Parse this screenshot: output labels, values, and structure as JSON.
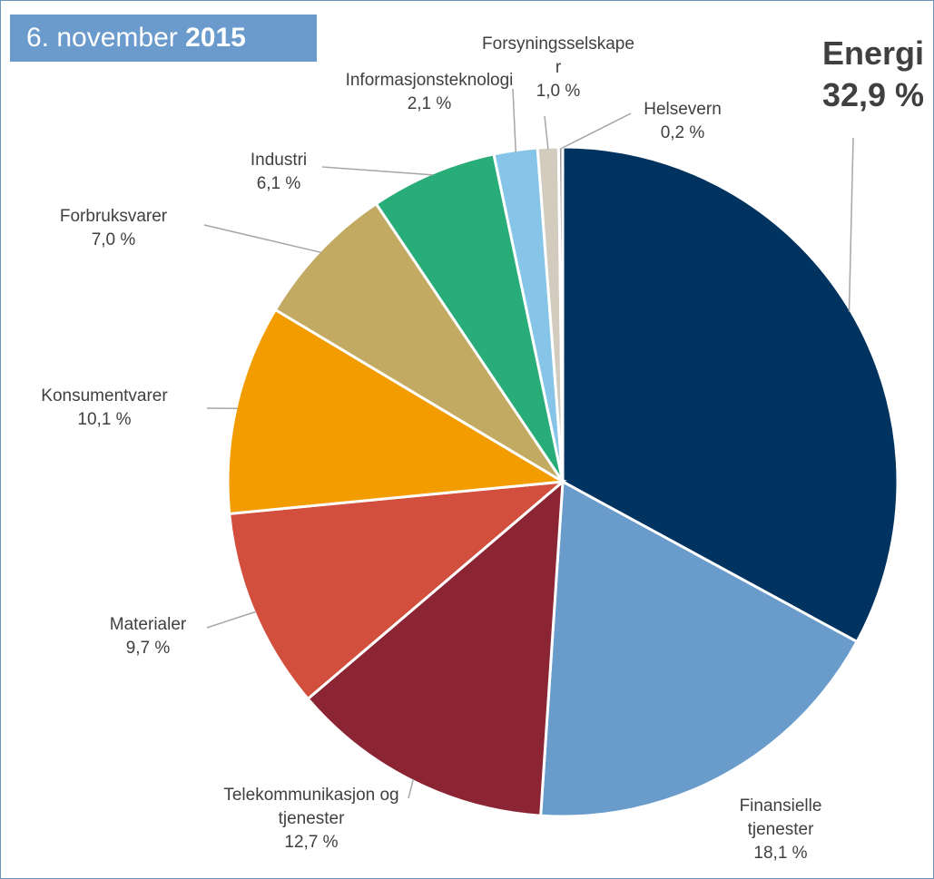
{
  "chart_data": {
    "type": "pie",
    "date": {
      "day": "6. november",
      "year": "2015"
    },
    "categories": [
      "Energi",
      "Finansielle tjenester",
      "Telekommunikasjon og tjenester",
      "Materialer",
      "Konsumentvarer",
      "Forbruksvarer",
      "Industri",
      "Informasjonsteknologi",
      "Forsyningsselskaper",
      "Helsevern"
    ],
    "values": [
      32.9,
      18.1,
      12.7,
      9.7,
      10.1,
      7.0,
      6.1,
      2.1,
      1.0,
      0.2
    ],
    "value_labels": [
      "32,9 %",
      "18,1 %",
      "12,7 %",
      "9,7 %",
      "10,1 %",
      "7,0 %",
      "6,1 %",
      "2,1 %",
      "1,0 %",
      "0,2 %"
    ],
    "colors": [
      "#00335f",
      "#699bcb",
      "#8b2533",
      "#d24f3e",
      "#f29c00",
      "#c3aa63",
      "#28ad79",
      "#86c5e7",
      "#d3ccbe",
      "#9a9a9a"
    ],
    "highlight": 0
  }
}
